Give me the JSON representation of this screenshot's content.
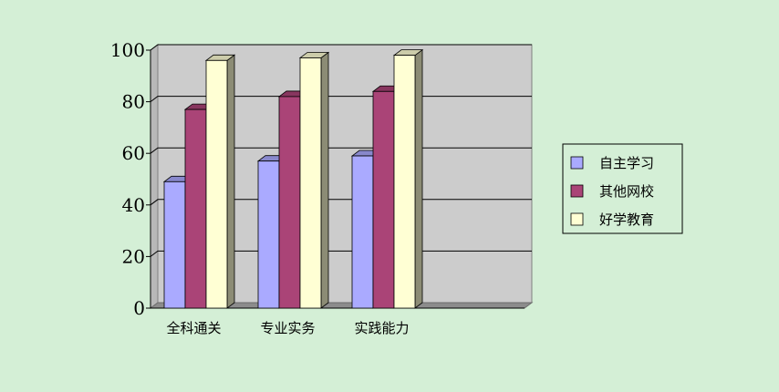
{
  "chart_data": {
    "type": "bar",
    "categories": [
      "全科通关",
      "专业实务",
      "实践能力"
    ],
    "series": [
      {
        "name": "自主学习",
        "values": [
          49,
          57,
          59
        ],
        "color": "#aaaaff"
      },
      {
        "name": "其他网校",
        "values": [
          77,
          82,
          84
        ],
        "color": "#aa4477"
      },
      {
        "name": "好学教育",
        "values": [
          96,
          97,
          98
        ],
        "color": "#ffffd4"
      }
    ],
    "ylim": [
      0,
      100
    ],
    "yticks": [
      0,
      20,
      40,
      60,
      80,
      100
    ],
    "grid": true,
    "legend": "right",
    "plot_background": "#cccccc",
    "background": "#d4efd6",
    "title": "",
    "xlabel": "",
    "ylabel": ""
  }
}
